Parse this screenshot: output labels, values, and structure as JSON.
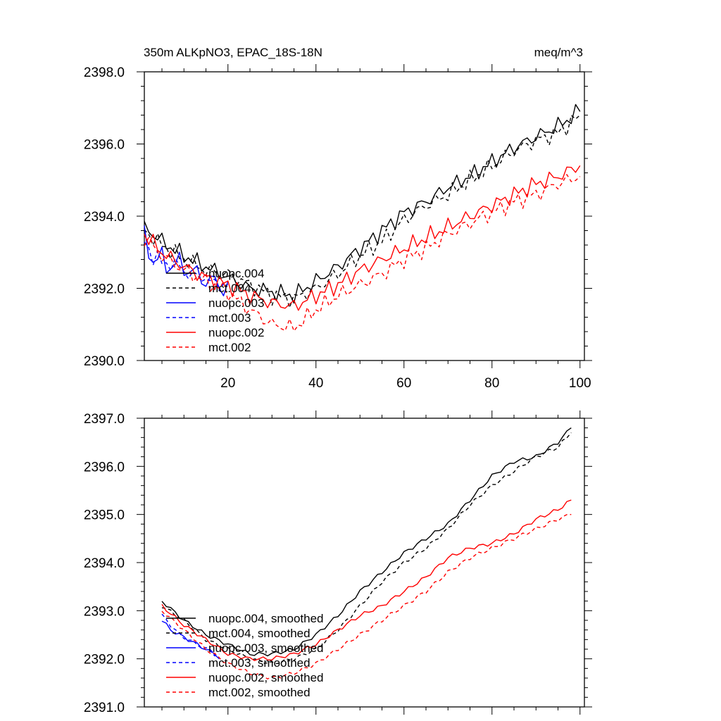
{
  "chart_data": [
    {
      "type": "line",
      "title": "350m ALKpNO3, EPAC_18S-18N",
      "units": "meq/m^3",
      "xlabel": "",
      "ylabel": "",
      "xlim": [
        1,
        101
      ],
      "ylim": [
        2390.0,
        2398.0
      ],
      "x_ticks": [
        20,
        40,
        60,
        80,
        100
      ],
      "x_tick_labels": [
        "20",
        "40",
        "60",
        "80",
        "100"
      ],
      "y_ticks": [
        2390.0,
        2392.0,
        2394.0,
        2396.0,
        2398.0
      ],
      "y_tick_labels": [
        "2390.0",
        "2392.0",
        "2394.0",
        "2396.0",
        "2398.0"
      ],
      "legend_position": "lower-left",
      "series": [
        {
          "name": "nuopc.004",
          "color": "#000000",
          "dash": "solid",
          "x": [
            1,
            5,
            10,
            15,
            20,
            25,
            30,
            35,
            40,
            45,
            50,
            55,
            60,
            65,
            70,
            75,
            80,
            85,
            90,
            95,
            100
          ],
          "values": [
            2393.7,
            2393.3,
            2392.9,
            2392.6,
            2392.3,
            2392.0,
            2391.9,
            2391.8,
            2392.2,
            2392.6,
            2393.1,
            2393.6,
            2394.1,
            2394.4,
            2394.8,
            2395.1,
            2395.5,
            2395.9,
            2396.2,
            2396.5,
            2396.9
          ]
        },
        {
          "name": "mct.004",
          "color": "#000000",
          "dash": "dashed",
          "x": [
            1,
            5,
            10,
            15,
            20,
            25,
            30,
            35,
            40,
            45,
            50,
            55,
            60,
            65,
            70,
            75,
            80,
            85,
            90,
            95,
            100
          ],
          "values": [
            2393.6,
            2393.2,
            2392.8,
            2392.5,
            2392.4,
            2392.1,
            2391.8,
            2391.7,
            2392.0,
            2392.4,
            2392.9,
            2393.3,
            2393.9,
            2394.3,
            2394.6,
            2395.0,
            2395.4,
            2395.8,
            2396.1,
            2396.3,
            2396.8
          ]
        },
        {
          "name": "nuopc.003",
          "color": "#0000ff",
          "dash": "solid",
          "x": [
            1,
            3,
            5,
            7,
            9,
            11,
            13,
            15,
            17,
            19,
            20
          ],
          "values": [
            2393.6,
            2392.6,
            2393.0,
            2392.4,
            2392.9,
            2392.3,
            2392.6,
            2392.0,
            2392.4,
            2391.8,
            2392.2
          ]
        },
        {
          "name": "mct.003",
          "color": "#0000ff",
          "dash": "dashed",
          "x": [
            1,
            3,
            5,
            7,
            9,
            11,
            13,
            15,
            17,
            19,
            20
          ],
          "values": [
            2393.5,
            2392.7,
            2392.9,
            2392.5,
            2392.8,
            2392.2,
            2392.5,
            2392.1,
            2392.3,
            2391.9,
            2392.1
          ]
        },
        {
          "name": "nuopc.002",
          "color": "#ff0000",
          "dash": "solid",
          "x": [
            1,
            5,
            10,
            15,
            20,
            25,
            30,
            35,
            40,
            45,
            50,
            55,
            60,
            65,
            70,
            75,
            80,
            85,
            90,
            95,
            100
          ],
          "values": [
            2393.5,
            2393.0,
            2392.6,
            2392.3,
            2392.1,
            2391.8,
            2391.6,
            2391.5,
            2391.8,
            2392.1,
            2392.5,
            2392.8,
            2393.1,
            2393.4,
            2393.7,
            2394.0,
            2394.3,
            2394.6,
            2394.9,
            2395.1,
            2395.4
          ]
        },
        {
          "name": "mct.002",
          "color": "#ff0000",
          "dash": "dashed",
          "x": [
            1,
            5,
            10,
            15,
            20,
            25,
            30,
            35,
            40,
            45,
            50,
            55,
            60,
            65,
            70,
            75,
            80,
            85,
            90,
            95,
            100
          ],
          "values": [
            2393.4,
            2392.9,
            2392.5,
            2392.2,
            2391.9,
            2391.4,
            2391.0,
            2390.9,
            2391.4,
            2391.8,
            2392.1,
            2392.4,
            2392.8,
            2393.1,
            2393.5,
            2393.8,
            2394.1,
            2394.4,
            2394.6,
            2394.9,
            2395.1
          ]
        }
      ]
    },
    {
      "type": "line",
      "title": "",
      "xlabel": "",
      "ylabel": "",
      "xlim": [
        1,
        101
      ],
      "ylim": [
        2391.0,
        2397.0
      ],
      "x_ticks": [
        20,
        40,
        60,
        80,
        100
      ],
      "x_tick_labels": [],
      "y_ticks": [
        2391.0,
        2392.0,
        2393.0,
        2394.0,
        2395.0,
        2396.0,
        2397.0
      ],
      "y_tick_labels": [
        "2391.0",
        "2392.0",
        "2393.0",
        "2394.0",
        "2395.0",
        "2396.0",
        "2397.0"
      ],
      "legend_position": "lower-left",
      "series": [
        {
          "name": "nuopc.004, smoothed",
          "color": "#000000",
          "dash": "solid",
          "x": [
            5,
            10,
            15,
            20,
            25,
            30,
            35,
            40,
            45,
            50,
            55,
            60,
            65,
            70,
            75,
            80,
            85,
            90,
            95,
            98
          ],
          "values": [
            2393.2,
            2392.8,
            2392.5,
            2392.3,
            2392.1,
            2392.1,
            2392.2,
            2392.5,
            2392.9,
            2393.4,
            2393.8,
            2394.2,
            2394.5,
            2394.8,
            2395.3,
            2395.8,
            2396.1,
            2396.2,
            2396.5,
            2396.8
          ]
        },
        {
          "name": "mct.004, smoothed",
          "color": "#000000",
          "dash": "dashed",
          "x": [
            5,
            10,
            15,
            20,
            25,
            30,
            35,
            40,
            45,
            50,
            55,
            60,
            65,
            70,
            75,
            80,
            85,
            90,
            95,
            98
          ],
          "values": [
            2393.1,
            2392.8,
            2392.4,
            2392.2,
            2392.0,
            2391.9,
            2392.0,
            2392.2,
            2392.6,
            2393.1,
            2393.6,
            2394.0,
            2394.3,
            2394.7,
            2395.2,
            2395.6,
            2395.9,
            2396.2,
            2396.4,
            2396.7
          ]
        },
        {
          "name": "nuopc.003, smoothed",
          "color": "#0000ff",
          "dash": "solid",
          "x": [
            5,
            7,
            9,
            11,
            13,
            15,
            17,
            18
          ],
          "values": [
            2392.8,
            2392.6,
            2392.5,
            2392.4,
            2392.3,
            2392.2,
            2392.1,
            2392.0
          ]
        },
        {
          "name": "mct.003, smoothed",
          "color": "#0000ff",
          "dash": "dashed",
          "x": [
            5,
            7,
            9,
            11,
            13,
            15,
            17,
            18
          ],
          "values": [
            2392.9,
            2392.7,
            2392.5,
            2392.4,
            2392.3,
            2392.2,
            2392.1,
            2392.1
          ]
        },
        {
          "name": "nuopc.002, smoothed",
          "color": "#ff0000",
          "dash": "solid",
          "x": [
            5,
            10,
            15,
            20,
            25,
            30,
            35,
            40,
            45,
            50,
            55,
            60,
            65,
            70,
            75,
            80,
            85,
            90,
            95,
            98
          ],
          "values": [
            2393.1,
            2392.7,
            2392.4,
            2392.1,
            2392.0,
            2392.0,
            2392.1,
            2392.3,
            2392.6,
            2392.9,
            2393.1,
            2393.4,
            2393.7,
            2394.1,
            2394.3,
            2394.4,
            2394.6,
            2394.9,
            2395.1,
            2395.3
          ]
        },
        {
          "name": "mct.002, smoothed",
          "color": "#ff0000",
          "dash": "dashed",
          "x": [
            5,
            10,
            15,
            20,
            25,
            30,
            35,
            40,
            45,
            50,
            55,
            60,
            65,
            70,
            75,
            80,
            85,
            90,
            95,
            98
          ],
          "values": [
            2393.0,
            2392.6,
            2392.2,
            2391.9,
            2391.7,
            2391.6,
            2391.7,
            2391.9,
            2392.2,
            2392.5,
            2392.8,
            2393.1,
            2393.4,
            2393.8,
            2394.1,
            2394.3,
            2394.5,
            2394.7,
            2394.9,
            2395.0
          ]
        }
      ]
    }
  ]
}
